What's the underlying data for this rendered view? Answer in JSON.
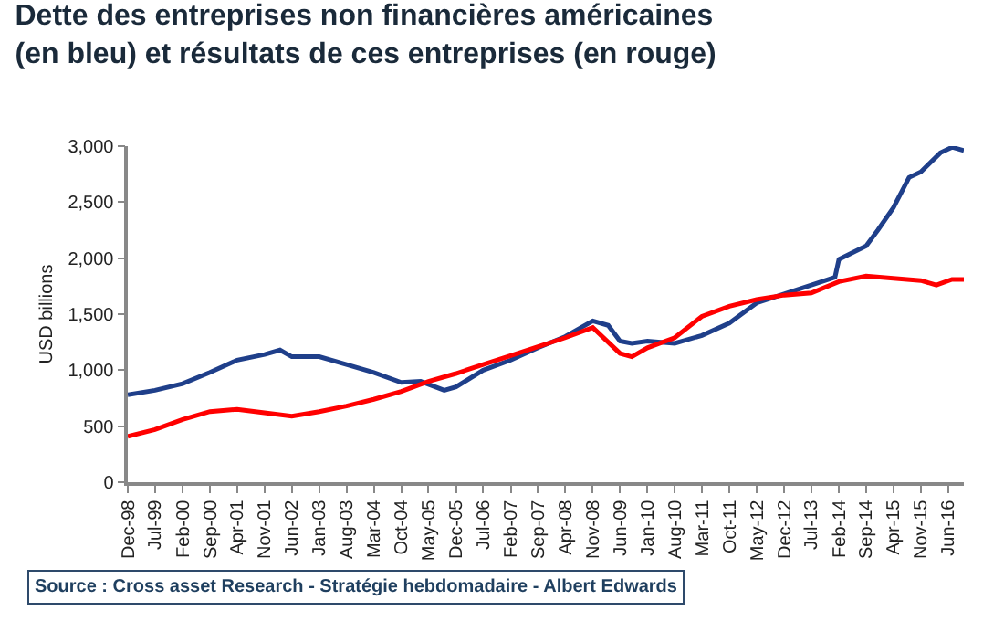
{
  "chart_data": {
    "type": "line",
    "title": "Dette des entreprises non financières américaines\n(en bleu) et résultats de ces entreprises (en rouge)",
    "ylabel": "USD billions",
    "annotations": [
      "Source : Cross asset Research - Stratégie hebdomadaire - Albert Edwards"
    ],
    "series": [
      {
        "color": "#1f3f8a",
        "x": [
          "1998-12",
          "1999-07",
          "2000-02",
          "2000-09",
          "2001-04",
          "2001-11",
          "2002-03",
          "2002-06",
          "2003-01",
          "2003-08",
          "2004-03",
          "2004-10",
          "2005-03",
          "2005-09",
          "2005-12",
          "2006-07",
          "2007-02",
          "2007-09",
          "2008-04",
          "2008-11",
          "2009-03",
          "2009-06",
          "2009-09",
          "2010-01",
          "2010-08",
          "2011-03",
          "2011-10",
          "2012-05",
          "2012-12",
          "2013-07",
          "2014-01",
          "2014-02",
          "2014-09",
          "2014-12",
          "2015-04",
          "2015-08",
          "2015-11",
          "2016-04",
          "2016-07",
          "2016-10"
        ],
        "values": [
          780,
          820,
          880,
          980,
          1090,
          1140,
          1180,
          1120,
          1120,
          1050,
          980,
          890,
          900,
          820,
          850,
          1000,
          1090,
          1200,
          1300,
          1440,
          1400,
          1260,
          1240,
          1260,
          1240,
          1310,
          1420,
          1600,
          1680,
          1760,
          1830,
          1990,
          2110,
          2250,
          2450,
          2720,
          2770,
          2940,
          2990,
          2960
        ]
      },
      {
        "color": "#ff0000",
        "x": [
          "1998-12",
          "1999-07",
          "2000-02",
          "2000-09",
          "2001-04",
          "2001-11",
          "2002-06",
          "2003-01",
          "2003-08",
          "2004-03",
          "2004-10",
          "2005-05",
          "2005-12",
          "2006-07",
          "2007-02",
          "2007-09",
          "2008-04",
          "2008-11",
          "2009-06",
          "2009-09",
          "2010-01",
          "2010-08",
          "2011-03",
          "2011-10",
          "2012-05",
          "2012-12",
          "2013-07",
          "2014-02",
          "2014-09",
          "2015-04",
          "2015-11",
          "2016-03",
          "2016-07",
          "2016-10"
        ],
        "values": [
          410,
          470,
          560,
          630,
          650,
          620,
          590,
          630,
          680,
          740,
          810,
          900,
          970,
          1050,
          1130,
          1210,
          1290,
          1380,
          1150,
          1120,
          1200,
          1290,
          1480,
          1570,
          1630,
          1670,
          1690,
          1790,
          1840,
          1820,
          1800,
          1760,
          1810,
          1810
        ]
      }
    ],
    "xlim": [
      "1998-12",
      "2016-10"
    ],
    "xticks": [
      {
        "value": "1998-12",
        "label": "Dec-98"
      },
      {
        "value": "1999-07",
        "label": "Jul-99"
      },
      {
        "value": "2000-02",
        "label": "Feb-00"
      },
      {
        "value": "2000-09",
        "label": "Sep-00"
      },
      {
        "value": "2001-04",
        "label": "Apr-01"
      },
      {
        "value": "2001-11",
        "label": "Nov-01"
      },
      {
        "value": "2002-06",
        "label": "Jun-02"
      },
      {
        "value": "2003-01",
        "label": "Jan-03"
      },
      {
        "value": "2003-08",
        "label": "Aug-03"
      },
      {
        "value": "2004-03",
        "label": "Mar-04"
      },
      {
        "value": "2004-10",
        "label": "Oct-04"
      },
      {
        "value": "2005-05",
        "label": "May-05"
      },
      {
        "value": "2005-12",
        "label": "Dec-05"
      },
      {
        "value": "2006-07",
        "label": "Jul-06"
      },
      {
        "value": "2007-02",
        "label": "Feb-07"
      },
      {
        "value": "2007-09",
        "label": "Sep-07"
      },
      {
        "value": "2008-04",
        "label": "Apr-08"
      },
      {
        "value": "2008-11",
        "label": "Nov-08"
      },
      {
        "value": "2009-06",
        "label": "Jun-09"
      },
      {
        "value": "2010-01",
        "label": "Jan-10"
      },
      {
        "value": "2010-08",
        "label": "Aug-10"
      },
      {
        "value": "2011-03",
        "label": "Mar-11"
      },
      {
        "value": "2011-10",
        "label": "Oct-11"
      },
      {
        "value": "2012-05",
        "label": "May-12"
      },
      {
        "value": "2012-12",
        "label": "Dec-12"
      },
      {
        "value": "2013-07",
        "label": "Jul-13"
      },
      {
        "value": "2014-02",
        "label": "Feb-14"
      },
      {
        "value": "2014-09",
        "label": "Sep-14"
      },
      {
        "value": "2015-04",
        "label": "Apr-15"
      },
      {
        "value": "2015-11",
        "label": "Nov-15"
      },
      {
        "value": "2016-06",
        "label": "Jun-16"
      }
    ],
    "ylim": [
      0,
      3000
    ],
    "yticks": [
      0,
      {
        "value": 500,
        "label": "500"
      },
      {
        "value": 1000,
        "label": "1,000"
      },
      {
        "value": 1500,
        "label": "1,500"
      },
      {
        "value": 2000,
        "label": "2,000"
      },
      {
        "value": 2500,
        "label": "2,500"
      },
      {
        "value": 3000,
        "label": "3,000"
      }
    ],
    "marker": "none",
    "line_style": "solid"
  }
}
